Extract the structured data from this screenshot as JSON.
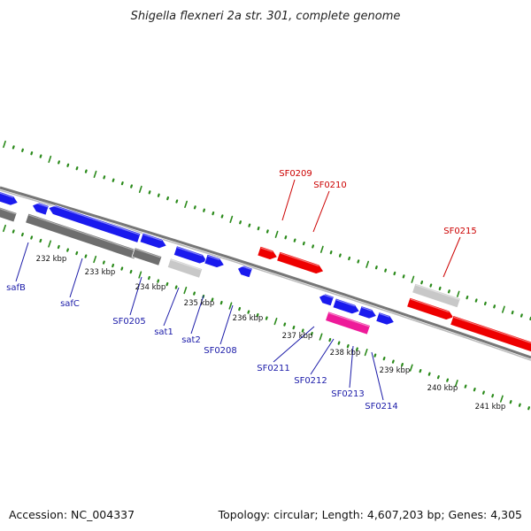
{
  "title": "Shigella flexneri 2a str. 301, complete genome",
  "footer": {
    "accession": "Accession: NC_004337",
    "summary": "Topology: circular; Length: 4,607,203 bp; Genes: 4,305"
  },
  "colors": {
    "forward_cds": "#ee0000",
    "reverse_cds": "#1a1aee",
    "rna": "#ee1a99",
    "other_forward": "#c8c8c8",
    "other_reverse": "#6e6e6e",
    "tick": "#2a8a1a",
    "backbone": "#888888",
    "label_forward": "#cc0000",
    "label_reverse": "#1a1aa8"
  },
  "kbp_labels": [
    "232 kbp",
    "233 kbp",
    "234 kbp",
    "235 kbp",
    "236 kbp",
    "237 kbp",
    "238 kbp",
    "239 kbp",
    "240 kbp",
    "241 kbp"
  ],
  "gene_labels": {
    "forward": [
      "SF0209",
      "SF0210",
      "SF0215"
    ],
    "reverse": [
      "safB",
      "safC",
      "SF0205",
      "sat1",
      "sat2",
      "SF0208",
      "SF0211",
      "SF0212",
      "SF0213",
      "SF0214"
    ]
  }
}
